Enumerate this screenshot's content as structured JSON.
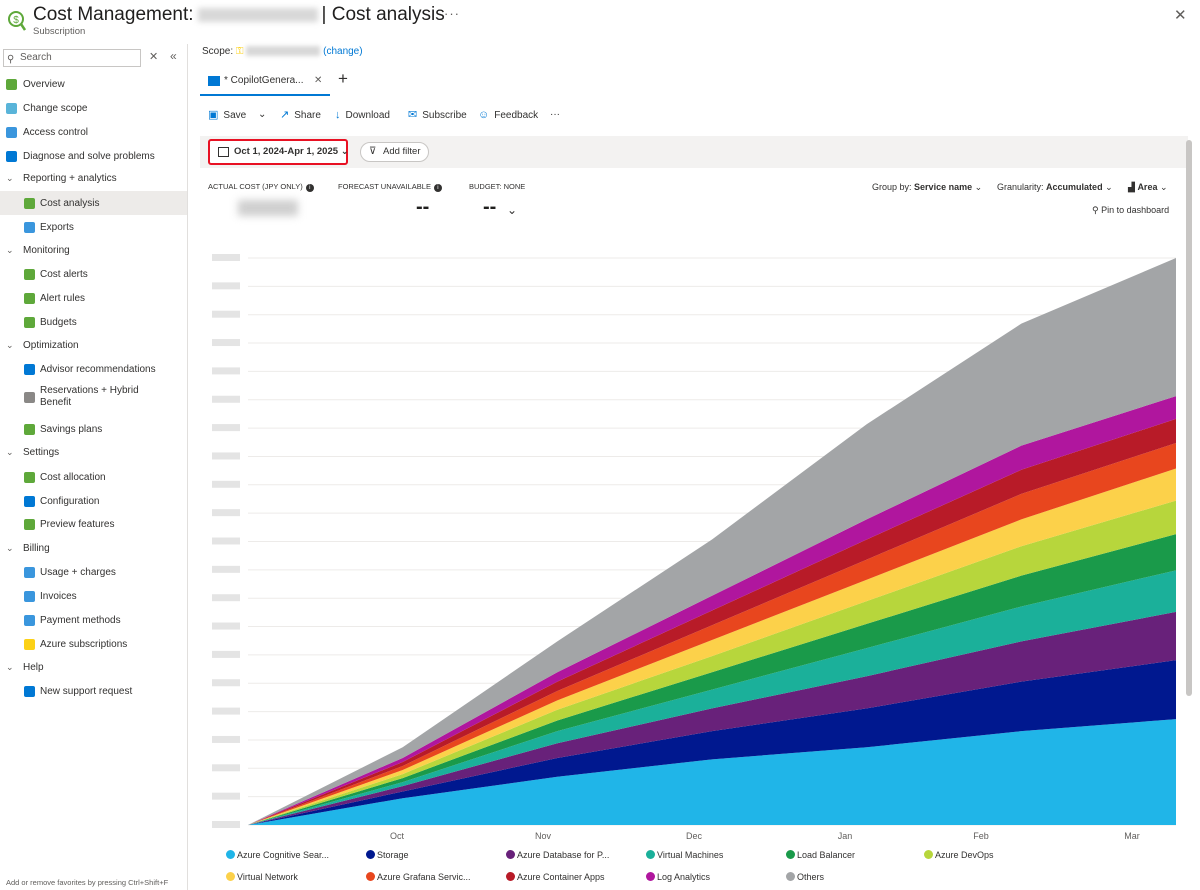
{
  "header": {
    "title_prefix": "Cost Management:",
    "title_suffix": "| Cost analysis",
    "subtitle": "Subscription",
    "more": "···",
    "close": "✕"
  },
  "sidebar": {
    "search_placeholder": "Search",
    "items": [
      {
        "label": "Overview",
        "type": "top",
        "icon_color": "#5ea83a"
      },
      {
        "label": "Change scope",
        "type": "top",
        "icon_color": "#59b4d9"
      },
      {
        "label": "Access control",
        "type": "top",
        "icon_color": "#3a96dd"
      },
      {
        "label": "Diagnose and solve problems",
        "type": "top",
        "icon_color": "#0078d4"
      },
      {
        "label": "Reporting + analytics",
        "type": "group"
      },
      {
        "label": "Cost analysis",
        "type": "sub",
        "icon_color": "#5ea83a",
        "selected": true
      },
      {
        "label": "Exports",
        "type": "sub",
        "icon_color": "#3a96dd"
      },
      {
        "label": "Monitoring",
        "type": "group"
      },
      {
        "label": "Cost alerts",
        "type": "sub",
        "icon_color": "#5ea83a"
      },
      {
        "label": "Alert rules",
        "type": "sub",
        "icon_color": "#5ea83a"
      },
      {
        "label": "Budgets",
        "type": "sub",
        "icon_color": "#5ea83a"
      },
      {
        "label": "Optimization",
        "type": "group"
      },
      {
        "label": "Advisor recommendations",
        "type": "sub",
        "icon_color": "#0078d4"
      },
      {
        "label": "Reservations + Hybrid Benefit",
        "type": "sub",
        "icon_color": "#8a8886",
        "tall": true
      },
      {
        "label": "Savings plans",
        "type": "sub",
        "icon_color": "#5ea83a"
      },
      {
        "label": "Settings",
        "type": "group"
      },
      {
        "label": "Cost allocation",
        "type": "sub",
        "icon_color": "#5ea83a"
      },
      {
        "label": "Configuration",
        "type": "sub",
        "icon_color": "#0078d4"
      },
      {
        "label": "Preview features",
        "type": "sub",
        "icon_color": "#5ea83a"
      },
      {
        "label": "Billing",
        "type": "group"
      },
      {
        "label": "Usage + charges",
        "type": "sub",
        "icon_color": "#3a96dd"
      },
      {
        "label": "Invoices",
        "type": "sub",
        "icon_color": "#3a96dd"
      },
      {
        "label": "Payment methods",
        "type": "sub",
        "icon_color": "#3a96dd"
      },
      {
        "label": "Azure subscriptions",
        "type": "sub",
        "icon_color": "#fcd116"
      },
      {
        "label": "Help",
        "type": "group"
      },
      {
        "label": "New support request",
        "type": "sub",
        "icon_color": "#0078d4"
      }
    ],
    "footer_hint": "Add or remove favorites by pressing Ctrl+Shift+F"
  },
  "scope": {
    "label": "Scope:",
    "change": "(change)"
  },
  "tab": {
    "label": "* CopilotGenera...",
    "close": "✕",
    "add": "+"
  },
  "toolbar": {
    "save": "Save",
    "share": "Share",
    "download": "Download",
    "subscribe": "Subscribe",
    "feedback": "Feedback",
    "more": "···"
  },
  "filters": {
    "date_range": "Oct 1, 2024-Apr 1, 2025",
    "add_filter": "Add filter"
  },
  "kpis": {
    "actual_cost_label": "ACTUAL COST (JPY ONLY)",
    "forecast_label": "FORECAST UNAVAILABLE",
    "forecast_value": "--",
    "budget_label": "BUDGET: NONE",
    "budget_value": "--"
  },
  "controls": {
    "group_by_label": "Group by:",
    "group_by_value": "Service name",
    "granularity_label": "Granularity:",
    "granularity_value": "Accumulated",
    "chart_type": "Area",
    "pin": "Pin to dashboard"
  },
  "chart_data": {
    "type": "area",
    "stacked": true,
    "accumulated": true,
    "x_labels": [
      "Oct",
      "Nov",
      "Dec",
      "Jan",
      "Feb",
      "Mar"
    ],
    "y_tick_labels_obscured": true,
    "x": [
      0,
      1,
      2,
      3,
      4,
      5,
      6
    ],
    "series": [
      {
        "name": "Azure Cognitive Sear...",
        "color": "#20b5e8",
        "values": [
          0,
          20,
          36,
          49,
          58,
          70,
          79
        ]
      },
      {
        "name": "Storage",
        "color": "#00188f",
        "values": [
          0,
          5,
          14,
          21,
          29,
          37,
          44
        ]
      },
      {
        "name": "Azure Database for P...",
        "color": "#68217a",
        "values": [
          0,
          4,
          11,
          17,
          24,
          30,
          36
        ]
      },
      {
        "name": "Virtual Machines",
        "color": "#1bb09a",
        "values": [
          0,
          3,
          9,
          14,
          21,
          26,
          31
        ]
      },
      {
        "name": "Load Balancer",
        "color": "#1a9a4a",
        "values": [
          0,
          3,
          8,
          13,
          18,
          23,
          27
        ]
      },
      {
        "name": "Azure DevOps",
        "color": "#b7d63c",
        "values": [
          0,
          3,
          8,
          12,
          17,
          22,
          25
        ]
      },
      {
        "name": "Virtual Network",
        "color": "#fcd14a",
        "values": [
          0,
          3,
          7,
          12,
          16,
          20,
          24
        ]
      },
      {
        "name": "Azure Grafana Servic...",
        "color": "#e8461e",
        "values": [
          0,
          3,
          7,
          11,
          15,
          19,
          19
        ]
      },
      {
        "name": "Azure Container Apps",
        "color": "#b81b28",
        "values": [
          0,
          3,
          7,
          11,
          15,
          18,
          18
        ]
      },
      {
        "name": "Log Analytics",
        "color": "#b0169e",
        "values": [
          0,
          3,
          7,
          11,
          15,
          18,
          17
        ]
      },
      {
        "name": "Others",
        "color": "#a3a5a7",
        "values": [
          0,
          8,
          23,
          42,
          71,
          91,
          103
        ]
      }
    ]
  }
}
